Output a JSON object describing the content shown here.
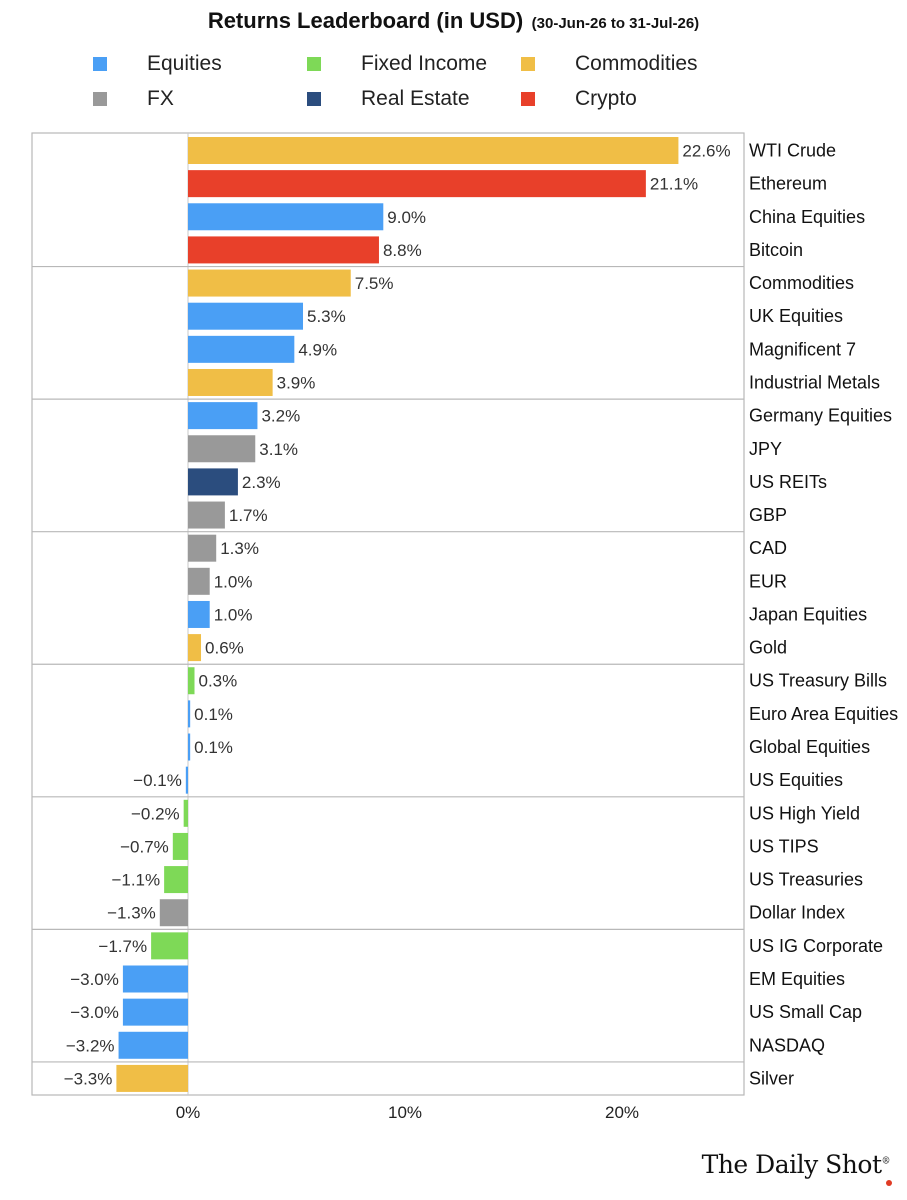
{
  "title": "Returns Leaderboard (in USD)",
  "subtitle": "(30-Jun-26 to 31-Jul-26)",
  "colors": {
    "Equities": "#4a9ff5",
    "Fixed Income": "#7ed957",
    "Commodities": "#f0be46",
    "FX": "#999999",
    "Real Estate": "#2b4d7e",
    "Crypto": "#e8402a"
  },
  "legend": [
    {
      "label": "Equities",
      "icon": "square"
    },
    {
      "label": "Fixed Income",
      "icon": "square"
    },
    {
      "label": "Commodities",
      "icon": "square"
    },
    {
      "label": "FX",
      "icon": "square"
    },
    {
      "label": "Real Estate",
      "icon": "square"
    },
    {
      "label": "Crypto",
      "icon": "square"
    }
  ],
  "logo": {
    "text": "The Daily Shot",
    "mark": "®"
  },
  "chart_data": {
    "type": "bar",
    "orientation": "horizontal",
    "title": "Returns Leaderboard (in USD)",
    "subtitle": "(30-Jun-26 to 31-Jul-26)",
    "xlim": [
      -3.6,
      25.8
    ],
    "xticks": [
      0,
      10,
      20
    ],
    "xtick_labels": [
      "0%",
      "10%",
      "20%"
    ],
    "group_size": 4,
    "legend_position": "top",
    "bars": [
      {
        "label": "WTI Crude",
        "value": 22.6,
        "value_label": "22.6%",
        "category": "Commodities"
      },
      {
        "label": "Ethereum",
        "value": 21.1,
        "value_label": "21.1%",
        "category": "Crypto"
      },
      {
        "label": "China Equities",
        "value": 9.0,
        "value_label": "9.0%",
        "category": "Equities"
      },
      {
        "label": "Bitcoin",
        "value": 8.8,
        "value_label": "8.8%",
        "category": "Crypto"
      },
      {
        "label": "Commodities",
        "value": 7.5,
        "value_label": "7.5%",
        "category": "Commodities"
      },
      {
        "label": "UK Equities",
        "value": 5.3,
        "value_label": "5.3%",
        "category": "Equities"
      },
      {
        "label": "Magnificent 7",
        "value": 4.9,
        "value_label": "4.9%",
        "category": "Equities"
      },
      {
        "label": "Industrial Metals",
        "value": 3.9,
        "value_label": "3.9%",
        "category": "Commodities"
      },
      {
        "label": "Germany Equities",
        "value": 3.2,
        "value_label": "3.2%",
        "category": "Equities"
      },
      {
        "label": "JPY",
        "value": 3.1,
        "value_label": "3.1%",
        "category": "FX"
      },
      {
        "label": "US REITs",
        "value": 2.3,
        "value_label": "2.3%",
        "category": "Real Estate"
      },
      {
        "label": "GBP",
        "value": 1.7,
        "value_label": "1.7%",
        "category": "FX"
      },
      {
        "label": "CAD",
        "value": 1.3,
        "value_label": "1.3%",
        "category": "FX"
      },
      {
        "label": "EUR",
        "value": 1.0,
        "value_label": "1.0%",
        "category": "FX"
      },
      {
        "label": "Japan Equities",
        "value": 1.0,
        "value_label": "1.0%",
        "category": "Equities"
      },
      {
        "label": "Gold",
        "value": 0.6,
        "value_label": "0.6%",
        "category": "Commodities"
      },
      {
        "label": "US Treasury Bills",
        "value": 0.3,
        "value_label": "0.3%",
        "category": "Fixed Income"
      },
      {
        "label": "Euro Area Equities",
        "value": 0.1,
        "value_label": "0.1%",
        "category": "Equities"
      },
      {
        "label": "Global Equities",
        "value": 0.1,
        "value_label": "0.1%",
        "category": "Equities"
      },
      {
        "label": "US Equities",
        "value": -0.1,
        "value_label": "−0.1%",
        "category": "Equities"
      },
      {
        "label": "US High Yield",
        "value": -0.2,
        "value_label": "−0.2%",
        "category": "Fixed Income"
      },
      {
        "label": "US TIPS",
        "value": -0.7,
        "value_label": "−0.7%",
        "category": "Fixed Income"
      },
      {
        "label": "US Treasuries",
        "value": -1.1,
        "value_label": "−1.1%",
        "category": "Fixed Income"
      },
      {
        "label": "Dollar Index",
        "value": -1.3,
        "value_label": "−1.3%",
        "category": "FX"
      },
      {
        "label": "US IG Corporate",
        "value": -1.7,
        "value_label": "−1.7%",
        "category": "Fixed Income"
      },
      {
        "label": "EM Equities",
        "value": -3.0,
        "value_label": "−3.0%",
        "category": "Equities"
      },
      {
        "label": "US Small Cap",
        "value": -3.0,
        "value_label": "−3.0%",
        "category": "Equities"
      },
      {
        "label": "NASDAQ",
        "value": -3.2,
        "value_label": "−3.2%",
        "category": "Equities"
      },
      {
        "label": "Silver",
        "value": -3.3,
        "value_label": "−3.3%",
        "category": "Commodities"
      }
    ]
  }
}
